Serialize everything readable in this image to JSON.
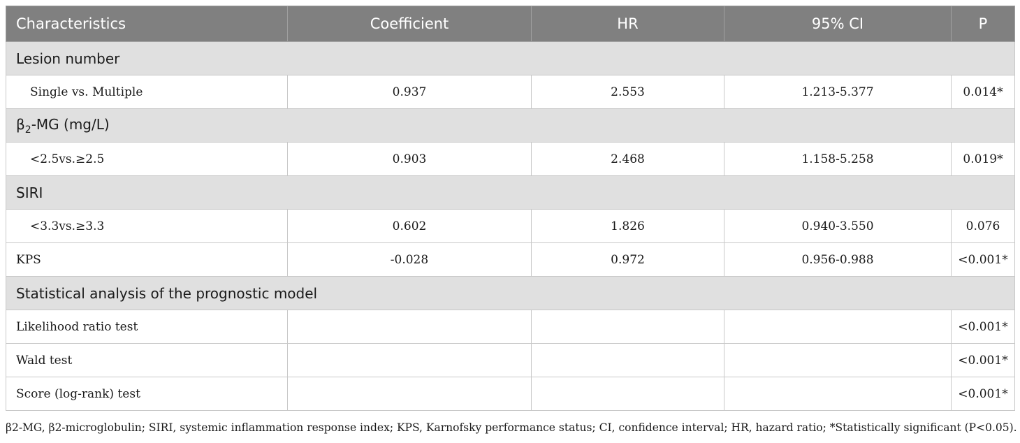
{
  "headers": {
    "characteristics": "Characteristics",
    "coefficient": "Coefficient",
    "hr": "HR",
    "ci": "95% CI",
    "p": "P"
  },
  "sections": {
    "lesion": {
      "title": "Lesion number",
      "row": {
        "label": "Single vs. Multiple",
        "coefficient": "0.937",
        "hr": "2.553",
        "ci": "1.213-5.377",
        "p": "0.014*"
      }
    },
    "b2mg": {
      "title_prefix": "β",
      "title_sub": "2",
      "title_suffix": "-MG (mg/L)",
      "row": {
        "label": "<2.5vs.≥2.5",
        "coefficient": "0.903",
        "hr": "2.468",
        "ci": "1.158-5.258",
        "p": "0.019*"
      }
    },
    "siri": {
      "title": "SIRI",
      "row": {
        "label": "<3.3vs.≥3.3",
        "coefficient": "0.602",
        "hr": "1.826",
        "ci": "0.940-3.550",
        "p": "0.076"
      }
    },
    "kps": {
      "row": {
        "label": "KPS",
        "coefficient": "-0.028",
        "hr": "0.972",
        "ci": "0.956-0.988",
        "p": "<0.001*"
      }
    },
    "model": {
      "title": "Statistical analysis of the prognostic model",
      "rows": [
        {
          "label": "Likelihood ratio test",
          "p": "<0.001*"
        },
        {
          "label": "Wald test",
          "p": "<0.001*"
        },
        {
          "label": "Score (log-rank) test",
          "p": "<0.001*"
        }
      ]
    }
  },
  "footnote": "β2-MG, β2-microglobulin; SIRI, systemic inflammation response index; KPS, Karnofsky performance status; CI, confidence interval; HR, hazard ratio; *Statistically significant (P<0.05)."
}
